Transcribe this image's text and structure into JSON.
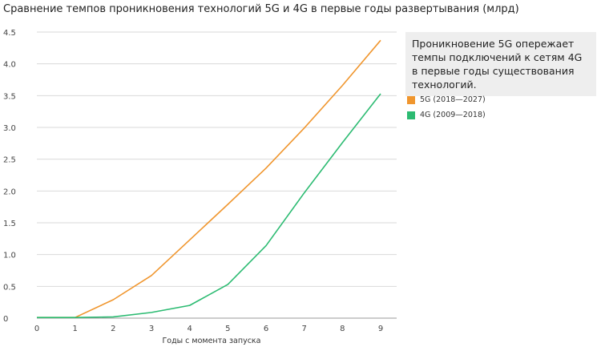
{
  "chart_data": {
    "type": "line",
    "title": "Сравнение темпов проникновения технологий 5G и 4G в первые годы развертывания (млрд)",
    "xlabel": "Годы с момента запуска",
    "ylabel": "",
    "x": [
      0,
      1,
      2,
      3,
      4,
      5,
      6,
      7,
      8,
      9
    ],
    "x_tick_labels": [
      "0",
      "1",
      "2",
      "3",
      "4",
      "5",
      "6",
      "7",
      "8",
      "9"
    ],
    "y_ticks": [
      0,
      0.5,
      1.0,
      1.5,
      2.0,
      2.5,
      3.0,
      3.5,
      4.0,
      4.5
    ],
    "y_tick_labels": [
      "0",
      "0.5",
      "1.0",
      "1.5",
      "2.0",
      "2.5",
      "3.0",
      "3.5",
      "4.0",
      "4.5"
    ],
    "xlim": [
      0,
      9
    ],
    "ylim": [
      0,
      4.5
    ],
    "grid": true,
    "legend_position": "right",
    "series": [
      {
        "name": "5G (2018—2027)",
        "color": "#F0962E",
        "values": [
          0.01,
          0.01,
          0.29,
          0.67,
          1.23,
          1.79,
          2.36,
          2.99,
          3.66,
          4.37
        ]
      },
      {
        "name": "4G (2009—2018)",
        "color": "#2CBB72",
        "values": [
          0.01,
          0.01,
          0.02,
          0.09,
          0.2,
          0.53,
          1.14,
          1.97,
          2.76,
          3.53
        ]
      }
    ],
    "annotation": "Проникновение 5G опережает темпы подключений к сетям 4G в первые годы существования технологий."
  }
}
